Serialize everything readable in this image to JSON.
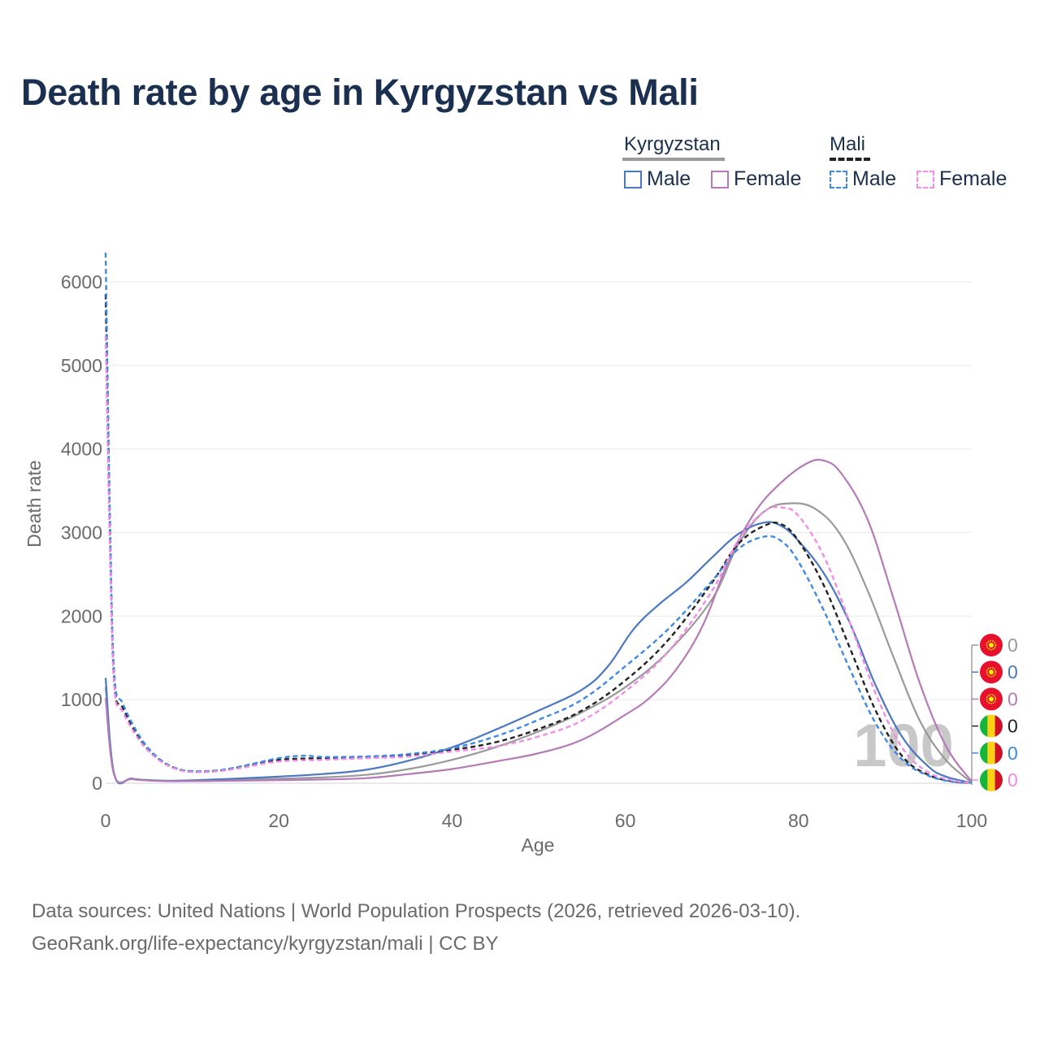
{
  "title": "Death rate by age in Kyrgyzstan vs Mali",
  "legend": {
    "groups": [
      {
        "name": "Kyrgyzstan",
        "line_color": "#9a9a9a",
        "dashed": false,
        "items": [
          {
            "label": "Male",
            "color": "#4a78c2",
            "dashed": false
          },
          {
            "label": "Female",
            "color": "#b67ab8",
            "dashed": false
          }
        ]
      },
      {
        "name": "Mali",
        "line_color": "#222222",
        "dashed": true,
        "items": [
          {
            "label": "Male",
            "color": "#3c8ae6",
            "dashed": true
          },
          {
            "label": "Female",
            "color": "#f38ce6",
            "dashed": true
          }
        ]
      }
    ]
  },
  "watermark": "100",
  "end_labels": [
    {
      "flag": "kyrgyzstan-flag",
      "value": "0",
      "color": "#9a9a9a"
    },
    {
      "flag": "kyrgyzstan-flag",
      "value": "0",
      "color": "#4a78c2"
    },
    {
      "flag": "kyrgyzstan-flag",
      "value": "0",
      "color": "#b67ab8"
    },
    {
      "flag": "mali-flag",
      "value": "0",
      "color": "#222222"
    },
    {
      "flag": "mali-flag",
      "value": "0",
      "color": "#3c8ae6"
    },
    {
      "flag": "mali-flag",
      "value": "0",
      "color": "#f38ce6"
    }
  ],
  "footer": {
    "line1": "Data sources: United Nations | World Population Prospects (2026, retrieved 2026-03-10).",
    "line2": "GeoRank.org/life-expectancy/kyrgyzstan/mali | CC BY"
  },
  "chart_data": {
    "type": "line",
    "title": "Death rate by age in Kyrgyzstan vs Mali",
    "xlabel": "Age",
    "ylabel": "Death rate",
    "xlim": [
      0,
      100
    ],
    "ylim": [
      0,
      6000
    ],
    "xticks": [
      0,
      20,
      40,
      60,
      80,
      100
    ],
    "yticks": [
      0,
      1000,
      2000,
      3000,
      4000,
      5000,
      6000
    ],
    "grid": true,
    "series": [
      {
        "name": "Kyrgyzstan Total",
        "color": "#9a9a9a",
        "dashed": false,
        "points": [
          [
            0,
            1150
          ],
          [
            1,
            100
          ],
          [
            3,
            55
          ],
          [
            5,
            35
          ],
          [
            7,
            28
          ],
          [
            10,
            30
          ],
          [
            15,
            40
          ],
          [
            20,
            55
          ],
          [
            25,
            70
          ],
          [
            30,
            100
          ],
          [
            35,
            170
          ],
          [
            40,
            280
          ],
          [
            45,
            430
          ],
          [
            50,
            620
          ],
          [
            55,
            850
          ],
          [
            60,
            1150
          ],
          [
            65,
            1580
          ],
          [
            70,
            2200
          ],
          [
            73,
            2850
          ],
          [
            76,
            3250
          ],
          [
            79,
            3350
          ],
          [
            82,
            3280
          ],
          [
            85,
            2950
          ],
          [
            88,
            2300
          ],
          [
            91,
            1500
          ],
          [
            94,
            750
          ],
          [
            97,
            280
          ],
          [
            100,
            10
          ]
        ]
      },
      {
        "name": "Kyrgyzstan Male",
        "color": "#4a78c2",
        "dashed": false,
        "points": [
          [
            0,
            1260
          ],
          [
            1,
            105
          ],
          [
            3,
            55
          ],
          [
            5,
            38
          ],
          [
            7,
            30
          ],
          [
            10,
            35
          ],
          [
            15,
            55
          ],
          [
            20,
            80
          ],
          [
            25,
            110
          ],
          [
            30,
            160
          ],
          [
            35,
            270
          ],
          [
            40,
            430
          ],
          [
            45,
            640
          ],
          [
            50,
            870
          ],
          [
            55,
            1120
          ],
          [
            58,
            1400
          ],
          [
            61,
            1850
          ],
          [
            64,
            2150
          ],
          [
            67,
            2400
          ],
          [
            70,
            2700
          ],
          [
            73,
            2980
          ],
          [
            76,
            3120
          ],
          [
            78,
            3080
          ],
          [
            80,
            2900
          ],
          [
            83,
            2500
          ],
          [
            86,
            1900
          ],
          [
            89,
            1150
          ],
          [
            92,
            550
          ],
          [
            95,
            200
          ],
          [
            97,
            80
          ],
          [
            100,
            5
          ]
        ]
      },
      {
        "name": "Kyrgyzstan Female",
        "color": "#b67ab8",
        "dashed": false,
        "points": [
          [
            0,
            1020
          ],
          [
            1,
            95
          ],
          [
            3,
            50
          ],
          [
            5,
            32
          ],
          [
            7,
            25
          ],
          [
            10,
            25
          ],
          [
            15,
            30
          ],
          [
            20,
            38
          ],
          [
            25,
            45
          ],
          [
            30,
            60
          ],
          [
            35,
            110
          ],
          [
            40,
            170
          ],
          [
            45,
            260
          ],
          [
            50,
            360
          ],
          [
            55,
            520
          ],
          [
            60,
            820
          ],
          [
            63,
            1040
          ],
          [
            66,
            1380
          ],
          [
            69,
            1900
          ],
          [
            72,
            2680
          ],
          [
            75,
            3250
          ],
          [
            78,
            3600
          ],
          [
            81,
            3830
          ],
          [
            83,
            3860
          ],
          [
            85,
            3700
          ],
          [
            88,
            3150
          ],
          [
            91,
            2200
          ],
          [
            94,
            1200
          ],
          [
            97,
            450
          ],
          [
            100,
            20
          ]
        ]
      },
      {
        "name": "Mali Total",
        "color": "#222222",
        "dashed": true,
        "points": [
          [
            0,
            5850
          ],
          [
            0.5,
            3000
          ],
          [
            1,
            1200
          ],
          [
            2,
            900
          ],
          [
            4,
            520
          ],
          [
            6,
            300
          ],
          [
            8,
            180
          ],
          [
            10,
            140
          ],
          [
            13,
            150
          ],
          [
            16,
            200
          ],
          [
            20,
            280
          ],
          [
            25,
            300
          ],
          [
            30,
            310
          ],
          [
            35,
            340
          ],
          [
            40,
            400
          ],
          [
            45,
            490
          ],
          [
            50,
            650
          ],
          [
            55,
            870
          ],
          [
            60,
            1230
          ],
          [
            65,
            1720
          ],
          [
            70,
            2400
          ],
          [
            73,
            2860
          ],
          [
            76,
            3080
          ],
          [
            78,
            3100
          ],
          [
            80,
            2900
          ],
          [
            83,
            2350
          ],
          [
            86,
            1600
          ],
          [
            89,
            850
          ],
          [
            92,
            320
          ],
          [
            95,
            100
          ],
          [
            98,
            20
          ],
          [
            100,
            5
          ]
        ]
      },
      {
        "name": "Mali Male",
        "color": "#3c8ae6",
        "dashed": true,
        "points": [
          [
            0,
            6350
          ],
          [
            0.5,
            3200
          ],
          [
            1,
            1300
          ],
          [
            2,
            950
          ],
          [
            4,
            550
          ],
          [
            6,
            310
          ],
          [
            8,
            185
          ],
          [
            10,
            145
          ],
          [
            13,
            155
          ],
          [
            16,
            210
          ],
          [
            20,
            300
          ],
          [
            23,
            330
          ],
          [
            25,
            315
          ],
          [
            30,
            320
          ],
          [
            35,
            350
          ],
          [
            40,
            420
          ],
          [
            45,
            560
          ],
          [
            50,
            760
          ],
          [
            55,
            1000
          ],
          [
            60,
            1400
          ],
          [
            65,
            1850
          ],
          [
            70,
            2420
          ],
          [
            73,
            2800
          ],
          [
            76,
            2950
          ],
          [
            78,
            2900
          ],
          [
            80,
            2650
          ],
          [
            83,
            2050
          ],
          [
            86,
            1350
          ],
          [
            89,
            700
          ],
          [
            92,
            280
          ],
          [
            95,
            90
          ],
          [
            98,
            15
          ],
          [
            100,
            5
          ]
        ]
      },
      {
        "name": "Mali Female",
        "color": "#f38ce6",
        "dashed": true,
        "points": [
          [
            0,
            5350
          ],
          [
            0.5,
            2800
          ],
          [
            1,
            1150
          ],
          [
            2,
            850
          ],
          [
            4,
            500
          ],
          [
            6,
            290
          ],
          [
            8,
            175
          ],
          [
            10,
            135
          ],
          [
            13,
            145
          ],
          [
            16,
            190
          ],
          [
            20,
            260
          ],
          [
            25,
            280
          ],
          [
            30,
            300
          ],
          [
            35,
            320
          ],
          [
            40,
            380
          ],
          [
            45,
            440
          ],
          [
            50,
            560
          ],
          [
            55,
            750
          ],
          [
            60,
            1100
          ],
          [
            65,
            1580
          ],
          [
            70,
            2300
          ],
          [
            73,
            2900
          ],
          [
            76,
            3250
          ],
          [
            78,
            3300
          ],
          [
            80,
            3200
          ],
          [
            83,
            2700
          ],
          [
            86,
            1900
          ],
          [
            89,
            1050
          ],
          [
            92,
            420
          ],
          [
            95,
            130
          ],
          [
            98,
            30
          ],
          [
            100,
            5
          ]
        ]
      }
    ]
  }
}
